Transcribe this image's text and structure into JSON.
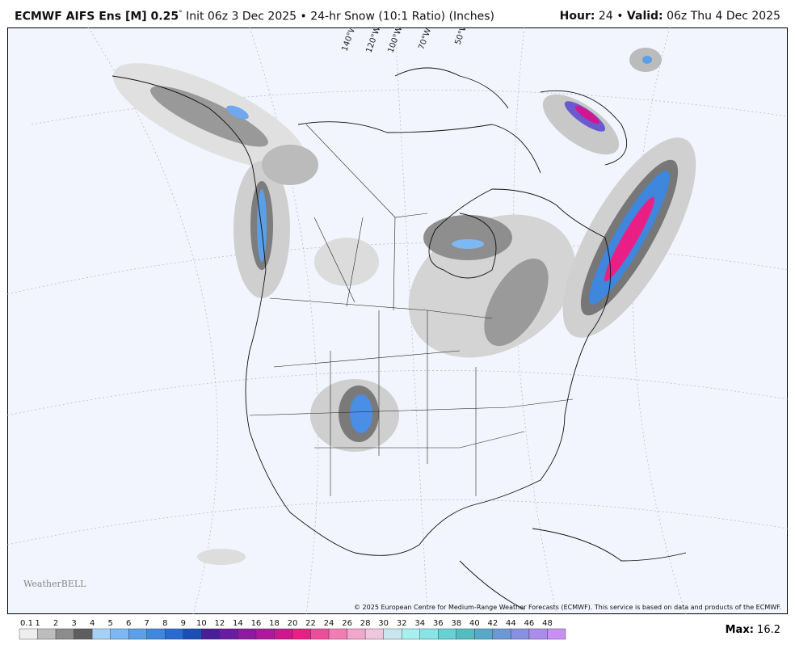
{
  "header": {
    "model": "ECMWF AIFS Ens [M] 0.25",
    "degree": "°",
    "init": "Init 06z 3 Dec 2025",
    "separator": "•",
    "product": "24-hr Snow (10:1 Ratio) (Inches)",
    "hour_label": "Hour:",
    "hour": 24,
    "valid_label": "Valid:",
    "valid": "06z Thu 4 Dec 2025"
  },
  "map": {
    "longitude_labels": [
      "140°W",
      "120°W",
      "100°W",
      "70°W",
      "50°W"
    ],
    "logo": "WeatherBELL",
    "credit": "© 2025 European Centre for Medium-Range Weather Forecasts (ECMWF). This service is based on data and products of the ECMWF."
  },
  "colorbar": {
    "levels": [
      0.1,
      1,
      2,
      3,
      4,
      5,
      6,
      7,
      8,
      9,
      10,
      12,
      14,
      16,
      18,
      20,
      22,
      24,
      26,
      28,
      30,
      32,
      34,
      36,
      38,
      40,
      42,
      44,
      46,
      48
    ],
    "colors": [
      "#eeeeee",
      "#bdbdbd",
      "#8c8c8c",
      "#5e5e5e",
      "#a6d1f7",
      "#7db8f2",
      "#5a9fe8",
      "#3f86dd",
      "#2a6bcf",
      "#1b4fb5",
      "#4a1e96",
      "#6a1c9e",
      "#8e1aa0",
      "#b0189c",
      "#d01790",
      "#ea1f86",
      "#f04c9c",
      "#f27db5",
      "#f3a6cc",
      "#f0c6de",
      "#c8e6f0",
      "#a8f0f0",
      "#88e4e6",
      "#6ad0d4",
      "#54bcc0",
      "#5aa8c8",
      "#6c98d6",
      "#8890e0",
      "#a88ee8",
      "#c890f0"
    ]
  },
  "max": {
    "label": "Max:",
    "value": 16.2
  }
}
